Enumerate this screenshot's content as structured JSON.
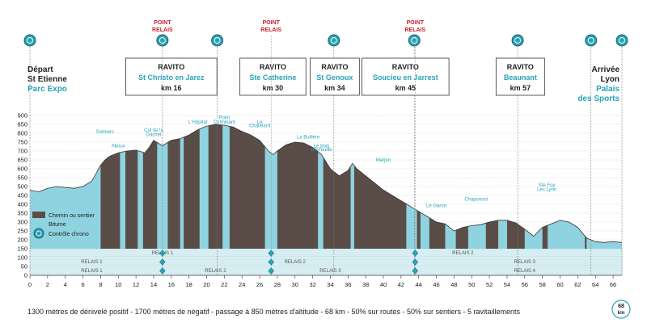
{
  "chart_data": {
    "type": "area",
    "xlabel": "",
    "ylabel": "",
    "xlim": [
      0,
      68
    ],
    "ylim": [
      0,
      900
    ],
    "x_ticks": [
      0,
      2,
      4,
      6,
      8,
      10,
      12,
      14,
      16,
      18,
      20,
      22,
      24,
      26,
      28,
      30,
      32,
      34,
      36,
      38,
      40,
      42,
      44,
      46,
      48,
      50,
      52,
      54,
      56,
      58,
      60,
      62,
      64,
      66
    ],
    "y_ticks": [
      0,
      50,
      100,
      150,
      200,
      250,
      300,
      350,
      400,
      450,
      500,
      550,
      600,
      650,
      700,
      750,
      800,
      850,
      900
    ],
    "profile": [
      {
        "x": 0,
        "y": 480
      },
      {
        "x": 1,
        "y": 470
      },
      {
        "x": 2,
        "y": 490
      },
      {
        "x": 3,
        "y": 500
      },
      {
        "x": 4,
        "y": 495
      },
      {
        "x": 5,
        "y": 490
      },
      {
        "x": 6,
        "y": 500
      },
      {
        "x": 7,
        "y": 530
      },
      {
        "x": 8,
        "y": 620
      },
      {
        "x": 8.5,
        "y": 650
      },
      {
        "x": 9,
        "y": 670
      },
      {
        "x": 10,
        "y": 690
      },
      {
        "x": 11,
        "y": 700
      },
      {
        "x": 12,
        "y": 705
      },
      {
        "x": 13,
        "y": 690
      },
      {
        "x": 13.5,
        "y": 720
      },
      {
        "x": 14,
        "y": 760
      },
      {
        "x": 15,
        "y": 730
      },
      {
        "x": 16,
        "y": 760
      },
      {
        "x": 17,
        "y": 770
      },
      {
        "x": 18,
        "y": 790
      },
      {
        "x": 19,
        "y": 820
      },
      {
        "x": 20,
        "y": 840
      },
      {
        "x": 21,
        "y": 850
      },
      {
        "x": 22,
        "y": 845
      },
      {
        "x": 23,
        "y": 835
      },
      {
        "x": 24,
        "y": 810
      },
      {
        "x": 25,
        "y": 790
      },
      {
        "x": 26,
        "y": 760
      },
      {
        "x": 27,
        "y": 700
      },
      {
        "x": 27.5,
        "y": 680
      },
      {
        "x": 28,
        "y": 700
      },
      {
        "x": 29,
        "y": 735
      },
      {
        "x": 30,
        "y": 750
      },
      {
        "x": 31,
        "y": 745
      },
      {
        "x": 32,
        "y": 720
      },
      {
        "x": 33,
        "y": 680
      },
      {
        "x": 34,
        "y": 600
      },
      {
        "x": 35,
        "y": 560
      },
      {
        "x": 36,
        "y": 590
      },
      {
        "x": 36.5,
        "y": 630
      },
      {
        "x": 37,
        "y": 600
      },
      {
        "x": 38,
        "y": 560
      },
      {
        "x": 39,
        "y": 520
      },
      {
        "x": 40,
        "y": 480
      },
      {
        "x": 41,
        "y": 450
      },
      {
        "x": 42,
        "y": 420
      },
      {
        "x": 43,
        "y": 390
      },
      {
        "x": 44,
        "y": 360
      },
      {
        "x": 45,
        "y": 330
      },
      {
        "x": 46,
        "y": 300
      },
      {
        "x": 47,
        "y": 290
      },
      {
        "x": 48,
        "y": 250
      },
      {
        "x": 49,
        "y": 270
      },
      {
        "x": 50,
        "y": 280
      },
      {
        "x": 51,
        "y": 285
      },
      {
        "x": 52,
        "y": 300
      },
      {
        "x": 53,
        "y": 310
      },
      {
        "x": 54,
        "y": 310
      },
      {
        "x": 55,
        "y": 295
      },
      {
        "x": 56,
        "y": 260
      },
      {
        "x": 57,
        "y": 220
      },
      {
        "x": 58,
        "y": 270
      },
      {
        "x": 59,
        "y": 290
      },
      {
        "x": 60,
        "y": 310
      },
      {
        "x": 61,
        "y": 300
      },
      {
        "x": 62,
        "y": 270
      },
      {
        "x": 63,
        "y": 210
      },
      {
        "x": 64,
        "y": 190
      },
      {
        "x": 65,
        "y": 185
      },
      {
        "x": 66,
        "y": 190
      },
      {
        "x": 67,
        "y": 185
      }
    ],
    "bitume_segments": [
      [
        0,
        8
      ],
      [
        10.2,
        10.8
      ],
      [
        12.2,
        12.8
      ],
      [
        14.4,
        15.6
      ],
      [
        17,
        17.4
      ],
      [
        19.2,
        20.2
      ],
      [
        21.8,
        22.6
      ],
      [
        26.6,
        28
      ],
      [
        32.6,
        33.2
      ],
      [
        36.3,
        36.7
      ],
      [
        42.6,
        43.8
      ],
      [
        44.2,
        45.2
      ],
      [
        47,
        48.2
      ],
      [
        49.6,
        51.6
      ],
      [
        53,
        54
      ],
      [
        56,
        58
      ],
      [
        58.6,
        62.8
      ],
      [
        63,
        67
      ]
    ],
    "places": [
      {
        "label": "Sorbiers",
        "x": 8.5,
        "y": 800
      },
      {
        "label": "Aboux",
        "x": 10,
        "y": 720
      },
      {
        "label": "Col de la",
        "x": 14,
        "y": 810
      },
      {
        "label": "Gachet",
        "x": 14,
        "y": 785
      },
      {
        "label": "L'Hôpital",
        "x": 19,
        "y": 855
      },
      {
        "label": "Point",
        "x": 22,
        "y": 880
      },
      {
        "label": "Culminant",
        "x": 22,
        "y": 855
      },
      {
        "label": "Le",
        "x": 26,
        "y": 855
      },
      {
        "label": "Chatelard",
        "x": 26,
        "y": 835
      },
      {
        "label": "La Bullière",
        "x": 31.5,
        "y": 770
      },
      {
        "label": "Le bois",
        "x": 33,
        "y": 720
      },
      {
        "label": "d'Arfeuille",
        "x": 33,
        "y": 700
      },
      {
        "label": "Marjon",
        "x": 40,
        "y": 640
      },
      {
        "label": "Le Garon",
        "x": 46,
        "y": 385
      },
      {
        "label": "Chaponost",
        "x": 50.5,
        "y": 420
      },
      {
        "label": "Ste Foy",
        "x": 58.5,
        "y": 500
      },
      {
        "label": "Les Lyon",
        "x": 58.5,
        "y": 475
      }
    ],
    "chrono_markers": [
      0,
      15,
      21.2,
      34.4,
      43.5,
      55.2,
      63.5,
      67
    ]
  },
  "relais_points": {
    "top_label": "POINT",
    "bottom_label": "RELAIS",
    "km": [
      15,
      27.3,
      43.6
    ]
  },
  "ravitos": [
    {
      "title": "RAVITO",
      "place": "St Christo en Jarez",
      "km": "km 16",
      "km_pos": 16
    },
    {
      "title": "RAVITO",
      "place": "Ste Catherine",
      "km": "km 30",
      "km_pos": 27.5
    },
    {
      "title": "RAVITO",
      "place": "St Genoux",
      "km": "km 34",
      "km_pos": 34.5
    },
    {
      "title": "RAVITO",
      "place": "Soucieu en Jarrest",
      "km": "km 45",
      "km_pos": 42.5
    },
    {
      "title": "RAVITO",
      "place": "Beaunant",
      "km": "km 57",
      "km_pos": 55.5
    }
  ],
  "start": {
    "line1": "Départ",
    "line2": "St Etienne",
    "line3": "Parc Expo"
  },
  "finish": {
    "line1": "Arrivée",
    "line2": "Lyon",
    "line3": "Palais",
    "line4": "des Sports"
  },
  "legend": {
    "chemin": "Chemin ou sentier",
    "bitume": "Bitume",
    "chrono": "Contrôle chrono"
  },
  "relais_bands": [
    {
      "label": "RELAIS 1",
      "row": 1,
      "x": 15
    },
    {
      "label": "RELAIS 2",
      "row": 1,
      "x": 49
    },
    {
      "label": "RELAIS 1",
      "row": 2,
      "x": 7
    },
    {
      "label": "RELAIS 2",
      "row": 2,
      "x": 30
    },
    {
      "label": "RELAIS 3",
      "row": 2,
      "x": 56
    },
    {
      "label": "RELAIS 1",
      "row": 3,
      "x": 7
    },
    {
      "label": "RELAIS 2",
      "row": 3,
      "x": 21
    },
    {
      "label": "RELAIS 3",
      "row": 3,
      "x": 34
    },
    {
      "label": "RELAIS 4",
      "row": 3,
      "x": 56
    }
  ],
  "footer": "1300 mètres de dénivelé positif - 1700 mètres de négatif - passage à 850 mètres d'altitude - 68 km - 50% sur routes - 50% sur sentiers - 5 ravitaillements",
  "distance_badge": {
    "value": "68",
    "unit": "km"
  },
  "colors": {
    "terrain": "#5a4d47",
    "bitume": "#8fd3e0",
    "band": "#d6eef2",
    "teal": "#2aa3b8",
    "red": "#c8202f"
  }
}
